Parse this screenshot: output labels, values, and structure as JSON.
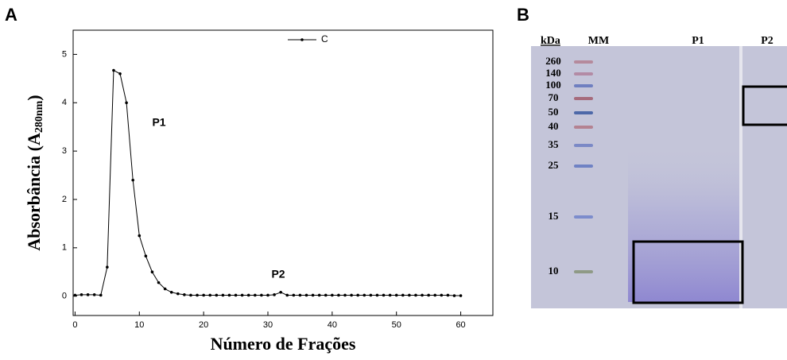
{
  "chart_data": {
    "type": "line",
    "panel_label": "A",
    "x_label": "Número de Frações",
    "y_label": {
      "text": "Absorbância (A",
      "subscript": "280nm",
      "suffix": ")"
    },
    "x": [
      0,
      1,
      2,
      3,
      4,
      5,
      6,
      7,
      8,
      9,
      10,
      11,
      12,
      13,
      14,
      15,
      16,
      17,
      18,
      19,
      20,
      21,
      22,
      23,
      24,
      25,
      26,
      27,
      28,
      29,
      30,
      31,
      32,
      33,
      34,
      35,
      36,
      37,
      38,
      39,
      40,
      41,
      42,
      43,
      44,
      45,
      46,
      47,
      48,
      49,
      50,
      51,
      52,
      53,
      54,
      55,
      56,
      57,
      58,
      59,
      60
    ],
    "series": [
      {
        "name": "C",
        "color": "#000000",
        "values": [
          0.02,
          0.03,
          0.03,
          0.03,
          0.02,
          0.6,
          4.67,
          4.6,
          4.0,
          2.4,
          1.25,
          0.83,
          0.5,
          0.28,
          0.15,
          0.08,
          0.05,
          0.03,
          0.02,
          0.02,
          0.02,
          0.02,
          0.02,
          0.02,
          0.02,
          0.02,
          0.02,
          0.02,
          0.02,
          0.02,
          0.02,
          0.03,
          0.08,
          0.02,
          0.02,
          0.02,
          0.02,
          0.02,
          0.02,
          0.02,
          0.02,
          0.02,
          0.02,
          0.02,
          0.02,
          0.02,
          0.02,
          0.02,
          0.02,
          0.02,
          0.02,
          0.02,
          0.02,
          0.02,
          0.02,
          0.02,
          0.02,
          0.02,
          0.02,
          0.01,
          0.01
        ]
      }
    ],
    "annotations": [
      "P1",
      "P2"
    ],
    "xlim": [
      -0.3,
      65
    ],
    "ylim": [
      -0.4,
      5.5
    ],
    "xticks": [
      0,
      10,
      20,
      30,
      40,
      50,
      60
    ],
    "yticks": [
      0,
      1,
      2,
      3,
      4,
      5
    ],
    "legend": "upper-right"
  },
  "gel": {
    "panel_label": "B",
    "unit": "kDa",
    "lanes": [
      "MM",
      "P1",
      "P2"
    ],
    "markers": [
      260,
      140,
      100,
      70,
      50,
      40,
      35,
      25,
      15,
      10
    ]
  }
}
